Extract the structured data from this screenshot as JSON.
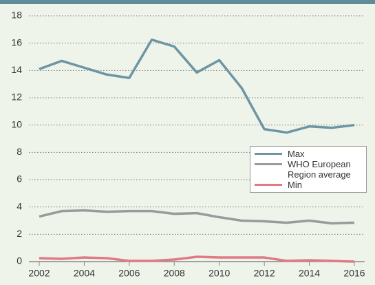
{
  "chart_data": {
    "type": "line",
    "x": [
      2002,
      2003,
      2004,
      2005,
      2006,
      2007,
      2008,
      2009,
      2010,
      2011,
      2012,
      2013,
      2014,
      2015,
      2016
    ],
    "series": [
      {
        "name": "Max",
        "color": "#6e95a3",
        "values": [
          14.1,
          14.7,
          14.2,
          13.7,
          13.45,
          16.25,
          15.75,
          13.85,
          14.75,
          12.7,
          9.7,
          9.45,
          9.9,
          9.8,
          10.0
        ]
      },
      {
        "name": "WHO European Region average",
        "color": "#9a9a9a",
        "values": [
          3.3,
          3.7,
          3.75,
          3.65,
          3.7,
          3.7,
          3.5,
          3.55,
          3.25,
          3.0,
          2.95,
          2.85,
          3.0,
          2.8,
          2.85
        ]
      },
      {
        "name": "Min",
        "color": "#e07a85",
        "values": [
          0.25,
          0.2,
          0.3,
          0.25,
          0.05,
          0.05,
          0.15,
          0.35,
          0.3,
          0.3,
          0.3,
          0.05,
          0.1,
          0.05,
          0.0
        ]
      }
    ],
    "xlim": [
      2002,
      2016
    ],
    "xticks": [
      2002,
      2004,
      2006,
      2008,
      2010,
      2012,
      2014,
      2016
    ],
    "ylim": [
      0,
      18
    ],
    "yticks": [
      0,
      2,
      4,
      6,
      8,
      10,
      12,
      14,
      16,
      18
    ],
    "grid": true,
    "legend": "right"
  }
}
